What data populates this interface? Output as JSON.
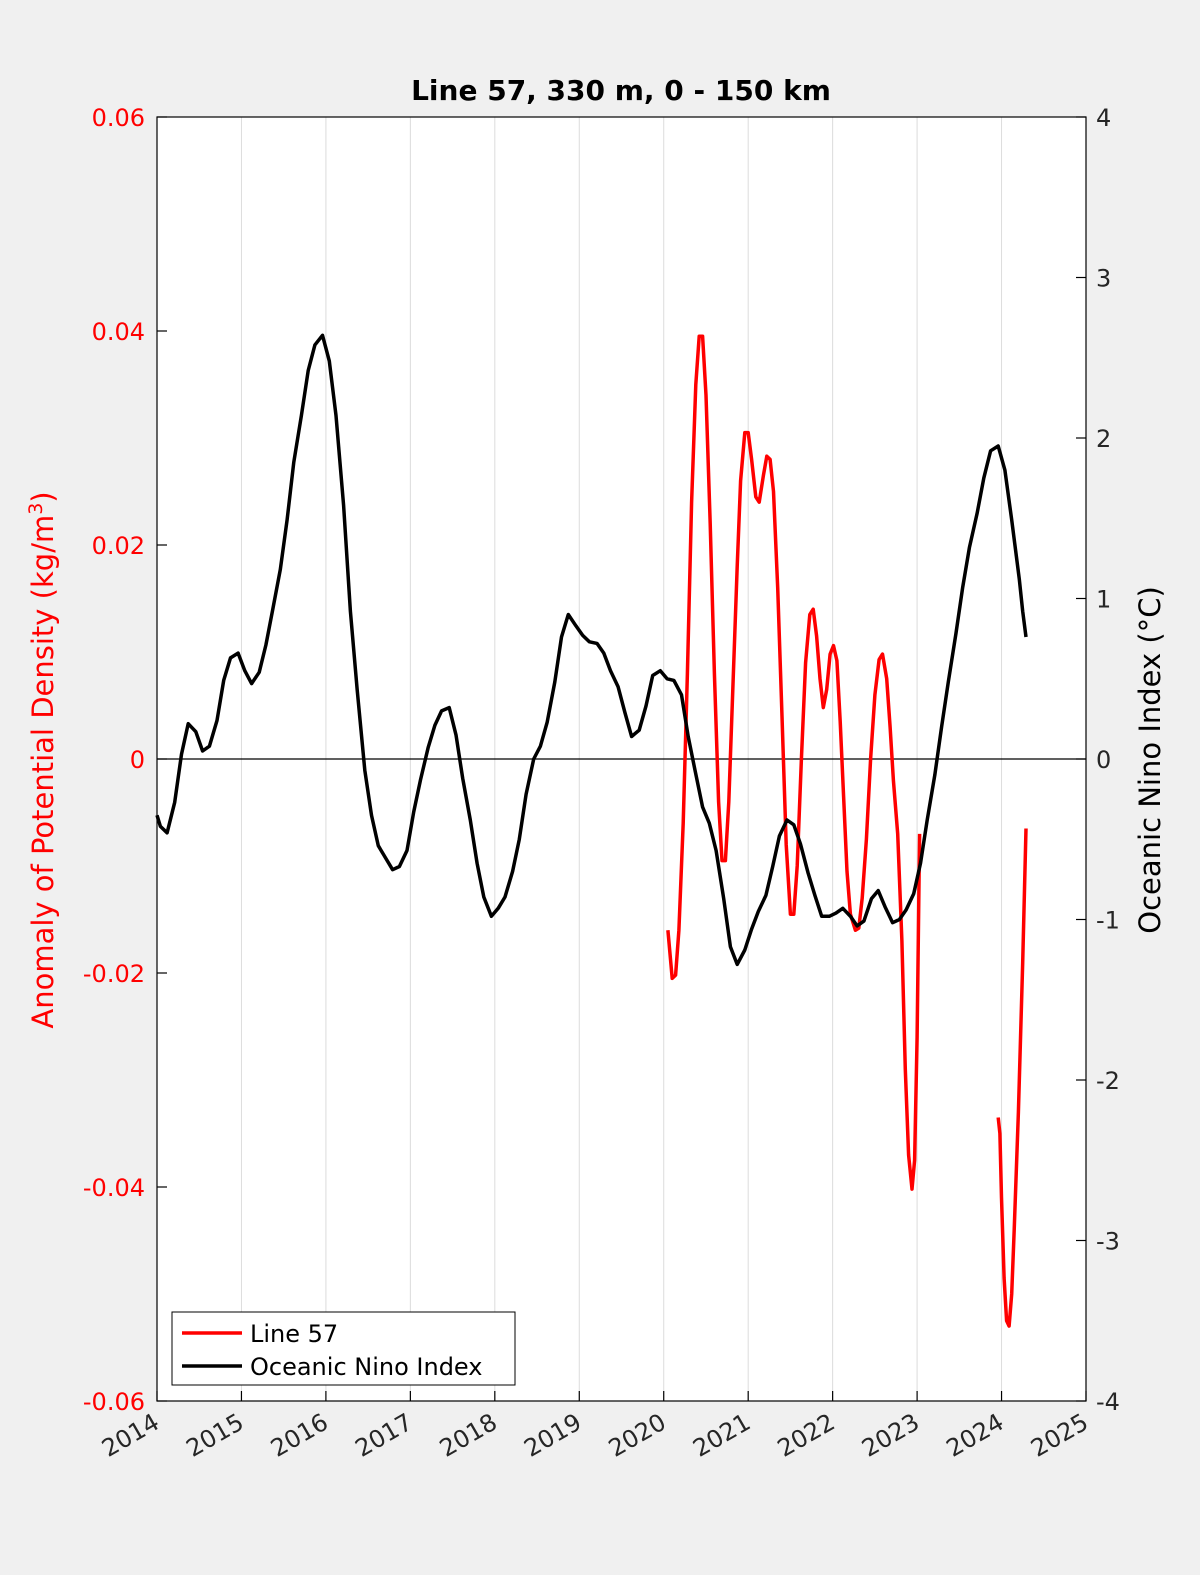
{
  "chart_data": {
    "type": "line",
    "title": "Line 57, 330 m, 0 - 150 km",
    "xlim": [
      2014,
      2025
    ],
    "x_ticks": [
      "2014",
      "2015",
      "2016",
      "2017",
      "2018",
      "2019",
      "2020",
      "2021",
      "2022",
      "2023",
      "2024",
      "2025"
    ],
    "y_left": {
      "label_main": "Anomaly of Potential Density (kg/m",
      "label_sup": "3",
      "label_end": ")",
      "lim": [
        -0.06,
        0.06
      ],
      "ticks": [
        "-0.06",
        "-0.04",
        "-0.02",
        "0",
        "0.02",
        "0.04",
        "0.06"
      ],
      "color": "#ff0000"
    },
    "y_right": {
      "label": "Oceanic Nino Index (°C)",
      "lim": [
        -4,
        4
      ],
      "ticks": [
        "-4",
        "-3",
        "-2",
        "-1",
        "0",
        "1",
        "2",
        "3",
        "4"
      ],
      "color": "#000000"
    },
    "grid_x": true,
    "zero_line": true,
    "legend_position": "bottom-left",
    "series": [
      {
        "name": "Line 57",
        "axis": "left",
        "color": "#ff0000",
        "segments": [
          [
            [
              2020.05,
              -0.016
            ],
            [
              2020.1,
              -0.0205
            ],
            [
              2020.14,
              -0.0202
            ],
            [
              2020.18,
              -0.016
            ],
            [
              2020.23,
              -0.006
            ],
            [
              2020.28,
              0.008
            ],
            [
              2020.33,
              0.024
            ],
            [
              2020.38,
              0.035
            ],
            [
              2020.42,
              0.0395
            ],
            [
              2020.46,
              0.0395
            ],
            [
              2020.5,
              0.034
            ],
            [
              2020.55,
              0.022
            ],
            [
              2020.6,
              0.008
            ],
            [
              2020.65,
              -0.004
            ],
            [
              2020.69,
              -0.0095
            ],
            [
              2020.73,
              -0.0095
            ],
            [
              2020.77,
              -0.004
            ],
            [
              2020.82,
              0.007
            ],
            [
              2020.87,
              0.018
            ],
            [
              2020.91,
              0.026
            ],
            [
              2020.96,
              0.0305
            ],
            [
              2021.0,
              0.0305
            ],
            [
              2021.04,
              0.028
            ],
            [
              2021.09,
              0.0245
            ],
            [
              2021.13,
              0.024
            ],
            [
              2021.18,
              0.0265
            ],
            [
              2021.22,
              0.0283
            ],
            [
              2021.26,
              0.028
            ],
            [
              2021.3,
              0.025
            ],
            [
              2021.35,
              0.016
            ],
            [
              2021.4,
              0.004
            ],
            [
              2021.45,
              -0.008
            ],
            [
              2021.5,
              -0.0145
            ],
            [
              2021.54,
              -0.0145
            ],
            [
              2021.58,
              -0.01
            ],
            [
              2021.63,
              0.0
            ],
            [
              2021.68,
              0.009
            ],
            [
              2021.73,
              0.0135
            ],
            [
              2021.77,
              0.014
            ],
            [
              2021.81,
              0.0115
            ],
            [
              2021.85,
              0.0075
            ],
            [
              2021.89,
              0.0048
            ],
            [
              2021.93,
              0.0065
            ],
            [
              2021.97,
              0.0098
            ],
            [
              2022.01,
              0.0106
            ],
            [
              2022.05,
              0.0092
            ],
            [
              2022.09,
              0.0035
            ],
            [
              2022.13,
              -0.0035
            ],
            [
              2022.17,
              -0.0105
            ],
            [
              2022.21,
              -0.0145
            ],
            [
              2022.27,
              -0.016
            ],
            [
              2022.31,
              -0.0158
            ],
            [
              2022.35,
              -0.013
            ],
            [
              2022.4,
              -0.0075
            ],
            [
              2022.45,
              0.0
            ],
            [
              2022.5,
              0.006
            ],
            [
              2022.55,
              0.0093
            ],
            [
              2022.59,
              0.0098
            ],
            [
              2022.64,
              0.0075
            ],
            [
              2022.68,
              0.003
            ],
            [
              2022.72,
              -0.002
            ],
            [
              2022.77,
              -0.007
            ],
            [
              2022.82,
              -0.017
            ],
            [
              2022.86,
              -0.029
            ],
            [
              2022.9,
              -0.037
            ],
            [
              2022.94,
              -0.0402
            ],
            [
              2022.97,
              -0.0375
            ],
            [
              2023.0,
              -0.026
            ],
            [
              2023.03,
              -0.007
            ]
          ],
          [
            [
              2023.96,
              -0.0335
            ],
            [
              2023.98,
              -0.035
            ],
            [
              2024.0,
              -0.041
            ],
            [
              2024.03,
              -0.0485
            ],
            [
              2024.06,
              -0.0525
            ],
            [
              2024.09,
              -0.053
            ],
            [
              2024.12,
              -0.05
            ],
            [
              2024.15,
              -0.044
            ],
            [
              2024.2,
              -0.033
            ],
            [
              2024.25,
              -0.019
            ],
            [
              2024.29,
              -0.0065
            ]
          ]
        ]
      },
      {
        "name": "Oceanic Nino Index",
        "axis": "right",
        "color": "#000000",
        "segments": [
          [
            [
              2014.0,
              -0.35
            ],
            [
              2014.04,
              -0.42
            ],
            [
              2014.12,
              -0.46
            ],
            [
              2014.21,
              -0.27
            ],
            [
              2014.29,
              0.03
            ],
            [
              2014.37,
              0.22
            ],
            [
              2014.46,
              0.17
            ],
            [
              2014.54,
              0.05
            ],
            [
              2014.62,
              0.08
            ],
            [
              2014.71,
              0.24
            ],
            [
              2014.79,
              0.49
            ],
            [
              2014.87,
              0.63
            ],
            [
              2014.96,
              0.66
            ],
            [
              2015.04,
              0.55
            ],
            [
              2015.12,
              0.47
            ],
            [
              2015.21,
              0.54
            ],
            [
              2015.29,
              0.71
            ],
            [
              2015.37,
              0.93
            ],
            [
              2015.46,
              1.18
            ],
            [
              2015.54,
              1.49
            ],
            [
              2015.62,
              1.85
            ],
            [
              2015.71,
              2.14
            ],
            [
              2015.79,
              2.42
            ],
            [
              2015.87,
              2.58
            ],
            [
              2015.96,
              2.64
            ],
            [
              2016.04,
              2.48
            ],
            [
              2016.12,
              2.14
            ],
            [
              2016.21,
              1.58
            ],
            [
              2016.29,
              0.92
            ],
            [
              2016.37,
              0.43
            ],
            [
              2016.46,
              -0.07
            ],
            [
              2016.54,
              -0.35
            ],
            [
              2016.62,
              -0.54
            ],
            [
              2016.71,
              -0.62
            ],
            [
              2016.79,
              -0.69
            ],
            [
              2016.87,
              -0.67
            ],
            [
              2016.96,
              -0.57
            ],
            [
              2017.04,
              -0.33
            ],
            [
              2017.12,
              -0.13
            ],
            [
              2017.21,
              0.07
            ],
            [
              2017.29,
              0.21
            ],
            [
              2017.37,
              0.3
            ],
            [
              2017.46,
              0.32
            ],
            [
              2017.54,
              0.15
            ],
            [
              2017.62,
              -0.12
            ],
            [
              2017.71,
              -0.38
            ],
            [
              2017.79,
              -0.65
            ],
            [
              2017.87,
              -0.86
            ],
            [
              2017.96,
              -0.98
            ],
            [
              2018.04,
              -0.93
            ],
            [
              2018.12,
              -0.86
            ],
            [
              2018.21,
              -0.7
            ],
            [
              2018.29,
              -0.5
            ],
            [
              2018.37,
              -0.22
            ],
            [
              2018.46,
              -0.0
            ],
            [
              2018.54,
              0.08
            ],
            [
              2018.62,
              0.23
            ],
            [
              2018.71,
              0.48
            ],
            [
              2018.79,
              0.76
            ],
            [
              2018.87,
              0.9
            ],
            [
              2018.96,
              0.83
            ],
            [
              2019.04,
              0.77
            ],
            [
              2019.12,
              0.73
            ],
            [
              2019.21,
              0.72
            ],
            [
              2019.29,
              0.66
            ],
            [
              2019.37,
              0.55
            ],
            [
              2019.46,
              0.45
            ],
            [
              2019.54,
              0.29
            ],
            [
              2019.62,
              0.14
            ],
            [
              2019.71,
              0.18
            ],
            [
              2019.79,
              0.33
            ],
            [
              2019.87,
              0.52
            ],
            [
              2019.96,
              0.55
            ],
            [
              2020.04,
              0.5
            ],
            [
              2020.12,
              0.49
            ],
            [
              2020.21,
              0.4
            ],
            [
              2020.29,
              0.14
            ],
            [
              2020.37,
              -0.07
            ],
            [
              2020.46,
              -0.3
            ],
            [
              2020.54,
              -0.4
            ],
            [
              2020.62,
              -0.57
            ],
            [
              2020.71,
              -0.87
            ],
            [
              2020.79,
              -1.17
            ],
            [
              2020.87,
              -1.28
            ],
            [
              2020.96,
              -1.19
            ],
            [
              2021.04,
              -1.06
            ],
            [
              2021.12,
              -0.95
            ],
            [
              2021.21,
              -0.85
            ],
            [
              2021.29,
              -0.67
            ],
            [
              2021.37,
              -0.48
            ],
            [
              2021.46,
              -0.38
            ],
            [
              2021.54,
              -0.41
            ],
            [
              2021.62,
              -0.53
            ],
            [
              2021.71,
              -0.71
            ],
            [
              2021.79,
              -0.85
            ],
            [
              2021.87,
              -0.98
            ],
            [
              2021.96,
              -0.98
            ],
            [
              2022.04,
              -0.96
            ],
            [
              2022.12,
              -0.93
            ],
            [
              2022.21,
              -0.98
            ],
            [
              2022.29,
              -1.04
            ],
            [
              2022.37,
              -1.01
            ],
            [
              2022.46,
              -0.87
            ],
            [
              2022.54,
              -0.82
            ],
            [
              2022.62,
              -0.92
            ],
            [
              2022.71,
              -1.02
            ],
            [
              2022.79,
              -1.0
            ],
            [
              2022.87,
              -0.94
            ],
            [
              2022.96,
              -0.84
            ],
            [
              2023.04,
              -0.65
            ],
            [
              2023.12,
              -0.38
            ],
            [
              2023.21,
              -0.1
            ],
            [
              2023.29,
              0.2
            ],
            [
              2023.37,
              0.48
            ],
            [
              2023.46,
              0.78
            ],
            [
              2023.54,
              1.07
            ],
            [
              2023.62,
              1.32
            ],
            [
              2023.71,
              1.53
            ],
            [
              2023.79,
              1.75
            ],
            [
              2023.87,
              1.92
            ],
            [
              2023.96,
              1.95
            ],
            [
              2024.04,
              1.8
            ],
            [
              2024.12,
              1.49
            ],
            [
              2024.21,
              1.12
            ],
            [
              2024.25,
              0.92
            ],
            [
              2024.29,
              0.76
            ]
          ]
        ]
      }
    ]
  }
}
